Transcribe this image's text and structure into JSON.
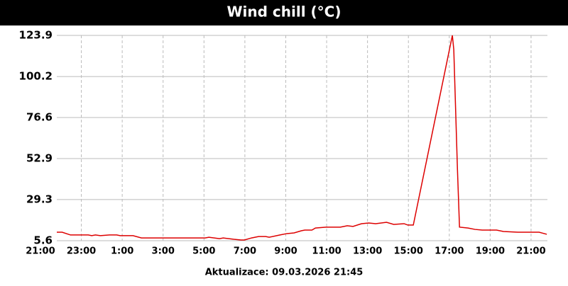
{
  "chart_data": {
    "type": "line",
    "title": "Wind chill (°C)",
    "footer": "Aktualizace: 09.03.2026 21:45",
    "xlim": [
      0.8,
      24.8
    ],
    "xticks": [
      {
        "value": 0,
        "label": "21:00"
      },
      {
        "value": 2,
        "label": "23:00"
      },
      {
        "value": 4,
        "label": "1:00"
      },
      {
        "value": 6,
        "label": "3:00"
      },
      {
        "value": 8,
        "label": "5:00"
      },
      {
        "value": 10,
        "label": "7:00"
      },
      {
        "value": 12,
        "label": "9:00"
      },
      {
        "value": 14,
        "label": "11:00"
      },
      {
        "value": 16,
        "label": "13:00"
      },
      {
        "value": 18,
        "label": "15:00"
      },
      {
        "value": 20,
        "label": "17:00"
      },
      {
        "value": 22,
        "label": "19:00"
      },
      {
        "value": 24,
        "label": "21:00"
      }
    ],
    "ylim": [
      5.6,
      123.9
    ],
    "yticks": [
      5.6,
      29.3,
      52.9,
      76.6,
      100.2,
      123.9
    ],
    "grid": true,
    "series": [
      {
        "color": "#dd0000",
        "x": [
          0.8,
          1.06,
          1.47,
          2.34,
          2.51,
          2.69,
          2.93,
          3.38,
          3.73,
          3.9,
          4.53,
          4.94,
          8.06,
          8.24,
          8.76,
          8.94,
          9.46,
          9.81,
          9.98,
          10.33,
          10.67,
          11.02,
          11.19,
          11.72,
          12.06,
          12.41,
          12.76,
          12.93,
          13.28,
          13.45,
          13.97,
          14.67,
          15.01,
          15.29,
          15.71,
          16.06,
          16.4,
          16.93,
          17.28,
          17.79,
          17.97,
          18.24,
          20.15,
          20.22,
          20.4,
          20.5,
          20.92,
          21.26,
          21.61,
          22.31,
          22.65,
          23.35,
          24.39,
          24.77
        ],
        "values": [
          10.5,
          10.5,
          8.9,
          8.9,
          8.5,
          8.9,
          8.5,
          8.9,
          8.9,
          8.5,
          8.5,
          7.2,
          7.2,
          7.6,
          6.8,
          7.2,
          6.4,
          6.0,
          6.0,
          7.2,
          8.0,
          8.0,
          7.6,
          8.9,
          9.7,
          10.1,
          11.3,
          11.7,
          11.7,
          12.9,
          13.4,
          13.4,
          14.2,
          13.8,
          15.4,
          15.8,
          15.4,
          16.2,
          15.0,
          15.4,
          14.6,
          14.6,
          123.9,
          115.7,
          46.4,
          13.4,
          12.9,
          12.1,
          11.7,
          11.7,
          10.9,
          10.5,
          10.5,
          9.3
        ]
      }
    ]
  }
}
